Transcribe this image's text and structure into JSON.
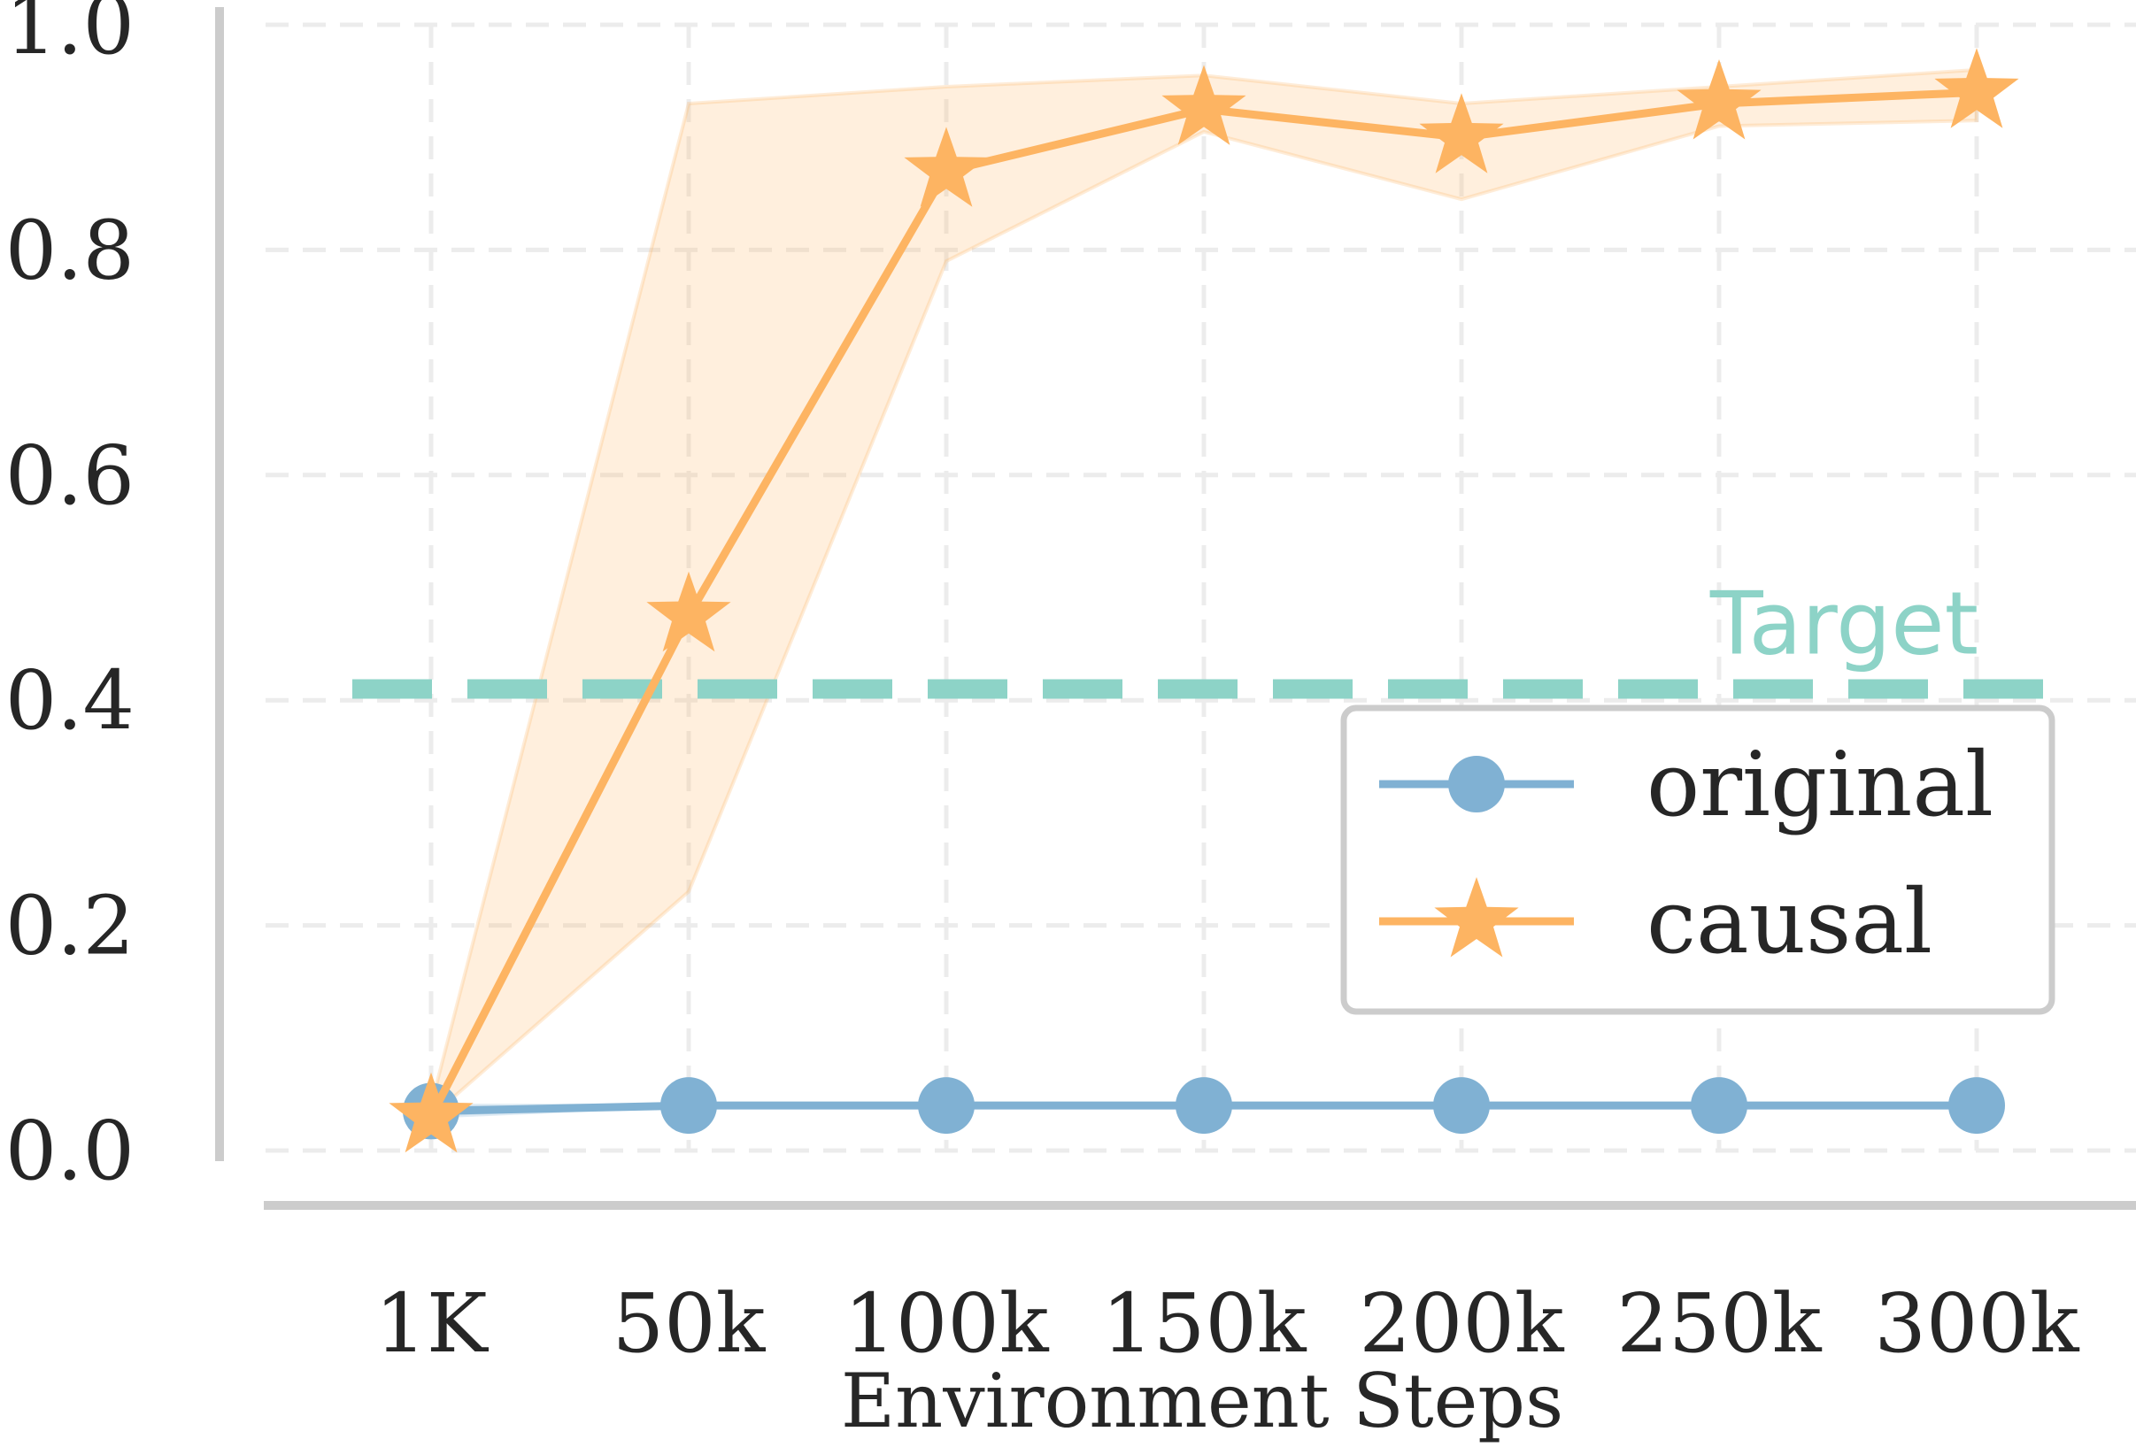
{
  "chart_data": {
    "type": "line",
    "title": "",
    "xlabel": "Environment Steps",
    "ylabel": "",
    "categories": [
      "1K",
      "50k",
      "100k",
      "150k",
      "200k",
      "250k",
      "300k"
    ],
    "yticks": [
      "0.0",
      "0.2",
      "0.4",
      "0.6",
      "0.8",
      "1.0"
    ],
    "ylim": [
      0,
      1.0
    ],
    "grid": true,
    "legend_position": "center-right",
    "series": [
      {
        "name": "original",
        "marker": "circle",
        "color": "#80b1d3",
        "values": [
          0.035,
          0.04,
          0.04,
          0.04,
          0.04,
          0.04,
          0.04
        ],
        "lower": [
          0.03,
          0.04,
          0.04,
          0.04,
          0.04,
          0.04,
          0.04
        ],
        "upper": [
          0.04,
          0.04,
          0.04,
          0.04,
          0.04,
          0.04,
          0.04
        ]
      },
      {
        "name": "causal",
        "marker": "star",
        "color": "#fdb462",
        "values": [
          0.03,
          0.475,
          0.87,
          0.925,
          0.9,
          0.93,
          0.94
        ],
        "lower": [
          0.03,
          0.23,
          0.79,
          0.905,
          0.845,
          0.91,
          0.915
        ],
        "upper": [
          0.04,
          0.93,
          0.945,
          0.955,
          0.93,
          0.945,
          0.96
        ]
      }
    ],
    "reference_line": {
      "label": "Target",
      "value": 0.41,
      "color": "#8dd3c7"
    }
  }
}
